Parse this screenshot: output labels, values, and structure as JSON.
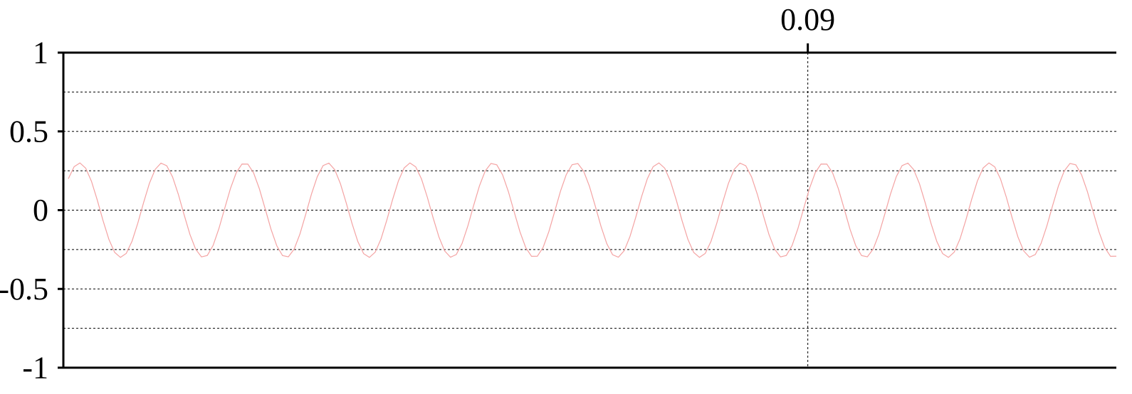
{
  "chart_data": {
    "type": "line",
    "title": "",
    "xlabel": "",
    "ylabel": "",
    "ylim": [
      -1,
      1
    ],
    "xlim": [
      0,
      0.1273
    ],
    "grid": true,
    "y_ticks": [
      1,
      0.5,
      0,
      -0.5,
      -1
    ],
    "y_tick_labels": [
      "1",
      "0.5",
      "0",
      "-0.5",
      "-1"
    ],
    "y_minor_grid": [
      0.75,
      0.25,
      -0.25,
      -0.75
    ],
    "x_ticks": [
      0.09
    ],
    "x_tick_labels": [
      "0.09"
    ],
    "x_tick_position": "top",
    "series": [
      {
        "color": "#f4a3a3",
        "amplitude": 0.3,
        "frequency_hz": 100,
        "phase_rad": 0.35,
        "x_start": 0.0006,
        "x_end": 0.1273,
        "sample_step": 0.0007
      }
    ]
  }
}
